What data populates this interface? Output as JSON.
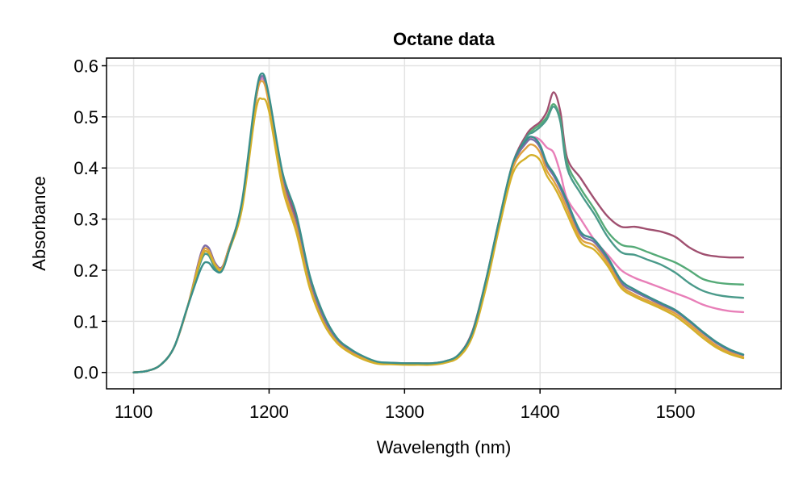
{
  "chart_data": {
    "type": "line",
    "title": "Octane data",
    "xlabel": "Wavelength (nm)",
    "ylabel": "Absorbance",
    "xlim": [
      1080,
      1578
    ],
    "ylim": [
      -0.032,
      0.615
    ],
    "xticks": [
      1100,
      1200,
      1300,
      1400,
      1500
    ],
    "xtick_labels": [
      "1100",
      "1200",
      "1300",
      "1400",
      "1500"
    ],
    "yticks": [
      0.0,
      0.1,
      0.2,
      0.3,
      0.4,
      0.5,
      0.6
    ],
    "ytick_labels": [
      "0.0",
      "0.1",
      "0.2",
      "0.3",
      "0.4",
      "0.5",
      "0.6"
    ],
    "grid": true,
    "legend": "none",
    "x": [
      1100,
      1110,
      1120,
      1130,
      1140,
      1150,
      1155,
      1160,
      1165,
      1170,
      1180,
      1190,
      1195,
      1200,
      1210,
      1220,
      1230,
      1240,
      1250,
      1260,
      1270,
      1280,
      1290,
      1300,
      1310,
      1320,
      1330,
      1340,
      1350,
      1360,
      1370,
      1380,
      1390,
      1395,
      1400,
      1405,
      1410,
      1415,
      1420,
      1430,
      1440,
      1450,
      1460,
      1470,
      1480,
      1490,
      1500,
      1510,
      1520,
      1530,
      1540,
      1550
    ],
    "series": [
      {
        "color": "#a05070",
        "values": [
          0.0,
          0.003,
          0.015,
          0.05,
          0.13,
          0.225,
          0.235,
          0.21,
          0.205,
          0.24,
          0.33,
          0.53,
          0.575,
          0.53,
          0.38,
          0.3,
          0.18,
          0.11,
          0.065,
          0.045,
          0.03,
          0.02,
          0.019,
          0.018,
          0.018,
          0.018,
          0.022,
          0.035,
          0.08,
          0.18,
          0.3,
          0.41,
          0.465,
          0.48,
          0.49,
          0.51,
          0.548,
          0.51,
          0.42,
          0.38,
          0.34,
          0.305,
          0.285,
          0.285,
          0.28,
          0.275,
          0.265,
          0.245,
          0.232,
          0.227,
          0.225,
          0.225
        ]
      },
      {
        "color": "#55aa77",
        "values": [
          0.0,
          0.003,
          0.015,
          0.05,
          0.13,
          0.22,
          0.23,
          0.205,
          0.2,
          0.235,
          0.33,
          0.53,
          0.575,
          0.53,
          0.375,
          0.29,
          0.175,
          0.105,
          0.062,
          0.042,
          0.028,
          0.019,
          0.018,
          0.017,
          0.017,
          0.017,
          0.021,
          0.033,
          0.075,
          0.175,
          0.295,
          0.405,
          0.46,
          0.475,
          0.485,
          0.5,
          0.525,
          0.495,
          0.41,
          0.36,
          0.32,
          0.275,
          0.25,
          0.245,
          0.235,
          0.225,
          0.215,
          0.2,
          0.183,
          0.176,
          0.173,
          0.172
        ]
      },
      {
        "color": "#4a9a8a",
        "values": [
          0.0,
          0.003,
          0.015,
          0.05,
          0.13,
          0.22,
          0.23,
          0.205,
          0.2,
          0.235,
          0.33,
          0.53,
          0.575,
          0.53,
          0.375,
          0.29,
          0.175,
          0.105,
          0.062,
          0.042,
          0.028,
          0.019,
          0.018,
          0.017,
          0.017,
          0.017,
          0.021,
          0.033,
          0.075,
          0.175,
          0.295,
          0.405,
          0.46,
          0.47,
          0.48,
          0.495,
          0.52,
          0.49,
          0.4,
          0.35,
          0.31,
          0.265,
          0.235,
          0.23,
          0.22,
          0.21,
          0.195,
          0.175,
          0.16,
          0.152,
          0.148,
          0.146
        ]
      },
      {
        "color": "#e87fb8",
        "values": [
          0.0,
          0.003,
          0.015,
          0.05,
          0.13,
          0.235,
          0.245,
          0.215,
          0.205,
          0.24,
          0.33,
          0.53,
          0.575,
          0.53,
          0.375,
          0.29,
          0.175,
          0.105,
          0.062,
          0.042,
          0.028,
          0.019,
          0.018,
          0.017,
          0.017,
          0.017,
          0.021,
          0.033,
          0.075,
          0.175,
          0.295,
          0.405,
          0.45,
          0.46,
          0.455,
          0.44,
          0.43,
          0.39,
          0.34,
          0.3,
          0.26,
          0.23,
          0.2,
          0.185,
          0.175,
          0.165,
          0.155,
          0.145,
          0.133,
          0.125,
          0.12,
          0.118
        ]
      },
      {
        "color": "#7a6ea8",
        "values": [
          0.0,
          0.003,
          0.015,
          0.05,
          0.13,
          0.235,
          0.245,
          0.215,
          0.205,
          0.24,
          0.33,
          0.53,
          0.58,
          0.53,
          0.375,
          0.29,
          0.175,
          0.105,
          0.062,
          0.042,
          0.028,
          0.019,
          0.018,
          0.017,
          0.017,
          0.017,
          0.021,
          0.033,
          0.075,
          0.175,
          0.295,
          0.405,
          0.45,
          0.455,
          0.44,
          0.405,
          0.385,
          0.36,
          0.33,
          0.27,
          0.255,
          0.22,
          0.175,
          0.158,
          0.145,
          0.132,
          0.12,
          0.1,
          0.078,
          0.058,
          0.043,
          0.034
        ]
      },
      {
        "color": "#e0a040",
        "values": [
          0.0,
          0.003,
          0.015,
          0.05,
          0.13,
          0.23,
          0.24,
          0.212,
          0.203,
          0.24,
          0.33,
          0.53,
          0.57,
          0.525,
          0.37,
          0.285,
          0.17,
          0.1,
          0.06,
          0.04,
          0.027,
          0.018,
          0.017,
          0.016,
          0.016,
          0.016,
          0.02,
          0.032,
          0.073,
          0.17,
          0.29,
          0.4,
          0.44,
          0.445,
          0.43,
          0.395,
          0.375,
          0.35,
          0.32,
          0.262,
          0.248,
          0.214,
          0.17,
          0.152,
          0.14,
          0.128,
          0.115,
          0.095,
          0.073,
          0.053,
          0.039,
          0.03
        ]
      },
      {
        "color": "#d4b02a",
        "values": [
          0.0,
          0.003,
          0.015,
          0.05,
          0.13,
          0.225,
          0.235,
          0.21,
          0.2,
          0.235,
          0.32,
          0.51,
          0.535,
          0.51,
          0.36,
          0.275,
          0.165,
          0.097,
          0.058,
          0.038,
          0.025,
          0.017,
          0.016,
          0.015,
          0.015,
          0.015,
          0.019,
          0.03,
          0.07,
          0.165,
          0.285,
          0.39,
          0.42,
          0.425,
          0.415,
          0.385,
          0.365,
          0.34,
          0.31,
          0.255,
          0.24,
          0.208,
          0.165,
          0.148,
          0.136,
          0.124,
          0.11,
          0.09,
          0.068,
          0.049,
          0.036,
          0.028
        ]
      },
      {
        "color": "#3a8f8a",
        "values": [
          0.0,
          0.003,
          0.015,
          0.05,
          0.13,
          0.205,
          0.215,
          0.2,
          0.198,
          0.235,
          0.335,
          0.54,
          0.585,
          0.54,
          0.39,
          0.31,
          0.19,
          0.115,
          0.068,
          0.046,
          0.031,
          0.021,
          0.019,
          0.018,
          0.018,
          0.018,
          0.022,
          0.035,
          0.078,
          0.18,
          0.3,
          0.41,
          0.455,
          0.46,
          0.445,
          0.41,
          0.39,
          0.365,
          0.335,
          0.275,
          0.26,
          0.225,
          0.18,
          0.162,
          0.148,
          0.135,
          0.122,
          0.102,
          0.08,
          0.06,
          0.045,
          0.035
        ]
      }
    ]
  }
}
